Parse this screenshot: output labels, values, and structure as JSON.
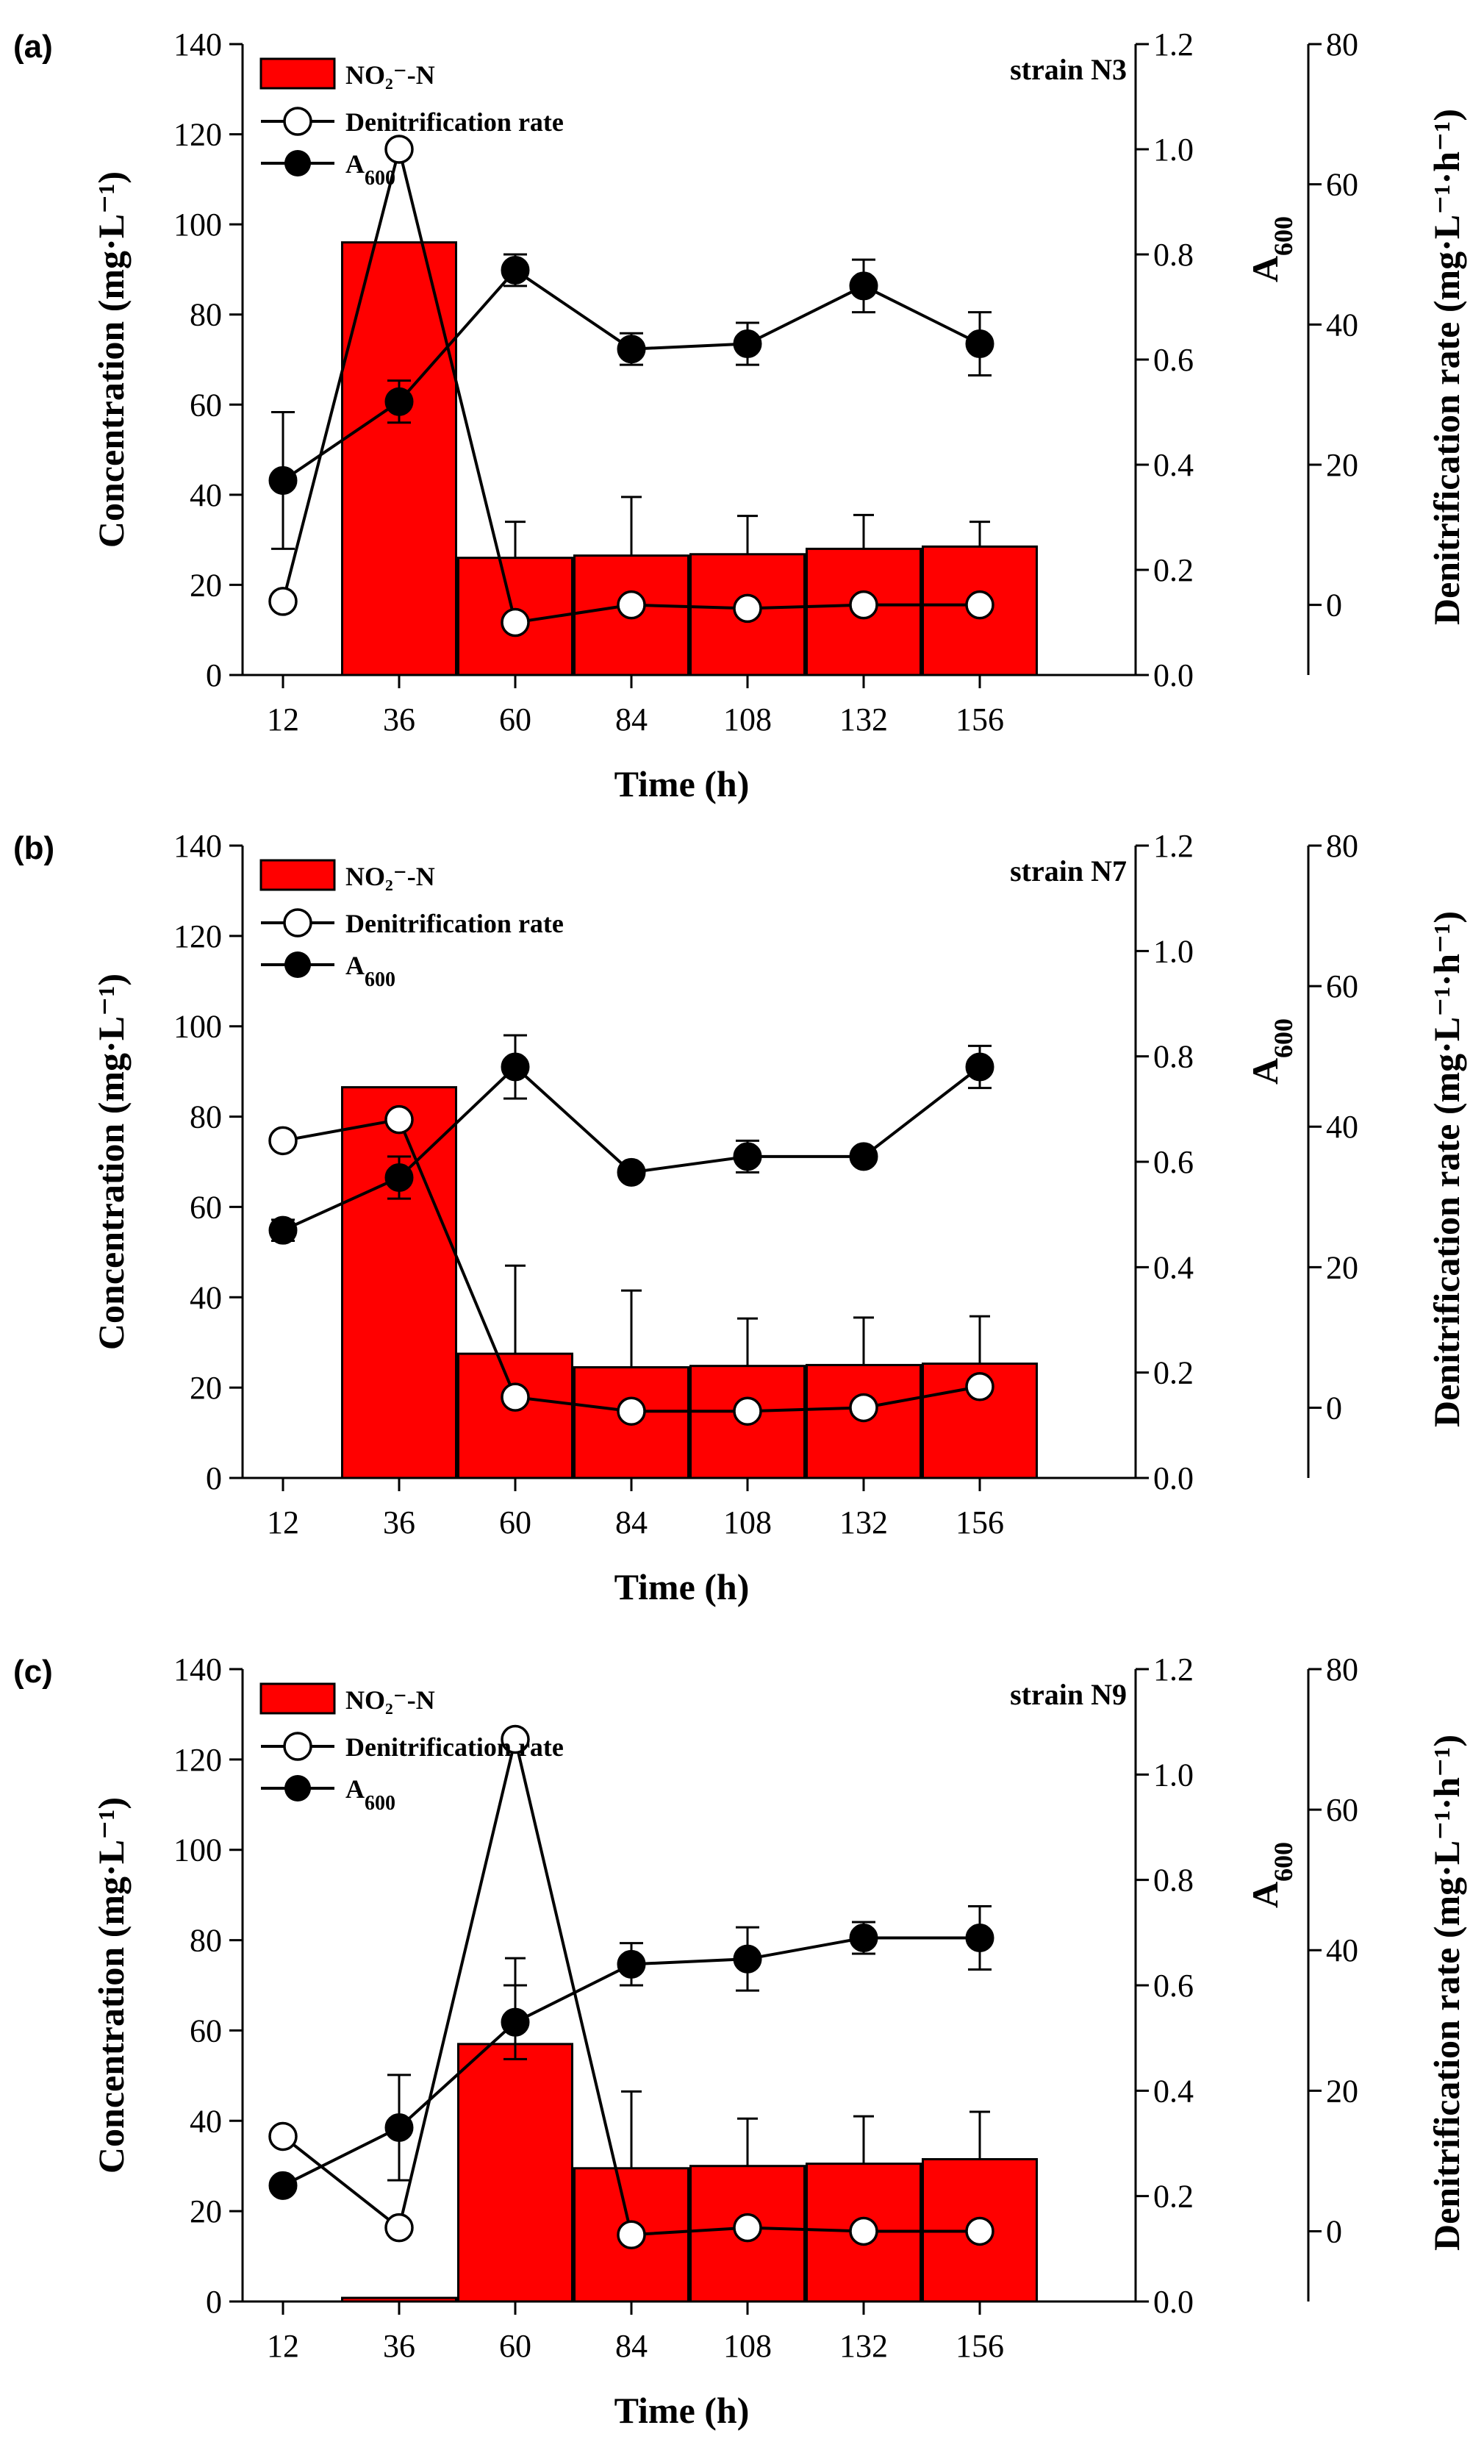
{
  "x_label": "Time (h)",
  "left_label": "Concentration (mg·L⁻¹)",
  "right1_label": "A600",
  "right2_label": "Denitrification rate (mg·L⁻¹·h⁻¹)",
  "legend": {
    "nitrite": "NO₂⁻-N",
    "rate": "Denitrification rate",
    "a600": "A600"
  },
  "colors": {
    "bar_fill": "#ff0000",
    "line": "#000000"
  },
  "chart_data": [
    {
      "type": "bar",
      "panel_label": "(a)",
      "strain": "strain N3",
      "categories": [
        "12",
        "36",
        "60",
        "84",
        "108",
        "132",
        "156"
      ],
      "ylim_left": [
        0,
        140
      ],
      "yticks_left": [
        "0",
        "20",
        "40",
        "60",
        "80",
        "100",
        "120",
        "140"
      ],
      "ylim_a600": [
        0,
        1.2
      ],
      "yticks_a600": [
        "0.0",
        "0.2",
        "0.4",
        "0.6",
        "0.8",
        "1.0",
        "1.2"
      ],
      "ylim_rate": [
        -10,
        80
      ],
      "yticks_rate": [
        "0",
        "20",
        "40",
        "60",
        "80"
      ],
      "series": [
        {
          "name": "NO₂⁻-N",
          "axis": "left",
          "values": [
            0,
            96,
            26,
            26.5,
            26.8,
            28,
            28.5
          ],
          "errors": [
            0,
            0,
            8,
            13,
            8.5,
            7.5,
            5.5
          ]
        },
        {
          "name": "Denitrification rate",
          "axis": "rate",
          "values": [
            0.5,
            65,
            -2.5,
            0,
            -0.5,
            0,
            0
          ]
        },
        {
          "name": "A600",
          "axis": "a600",
          "values": [
            0.37,
            0.52,
            0.77,
            0.62,
            0.63,
            0.74,
            0.63
          ],
          "errors": [
            0.13,
            0.04,
            0.03,
            0.03,
            0.04,
            0.05,
            0.06
          ]
        }
      ]
    },
    {
      "type": "bar",
      "panel_label": "(b)",
      "strain": "strain N7",
      "categories": [
        "12",
        "36",
        "60",
        "84",
        "108",
        "132",
        "156"
      ],
      "ylim_left": [
        0,
        140
      ],
      "yticks_left": [
        "0",
        "20",
        "40",
        "60",
        "80",
        "100",
        "120",
        "140"
      ],
      "ylim_a600": [
        0,
        1.2
      ],
      "yticks_a600": [
        "0.0",
        "0.2",
        "0.4",
        "0.6",
        "0.8",
        "1.0",
        "1.2"
      ],
      "ylim_rate": [
        -10,
        80
      ],
      "yticks_rate": [
        "0",
        "20",
        "40",
        "60",
        "80"
      ],
      "series": [
        {
          "name": "NO₂⁻-N",
          "axis": "left",
          "values": [
            0,
            86.5,
            27.5,
            24.5,
            24.8,
            25,
            25.3
          ],
          "errors": [
            0,
            0,
            19.5,
            17,
            10.5,
            10.5,
            10.5
          ]
        },
        {
          "name": "Denitrification rate",
          "axis": "rate",
          "values": [
            38,
            41,
            1.5,
            -0.5,
            -0.5,
            0,
            3
          ]
        },
        {
          "name": "A600",
          "axis": "a600",
          "values": [
            0.47,
            0.57,
            0.78,
            0.58,
            0.61,
            0.61,
            0.78
          ],
          "errors": [
            0.02,
            0.04,
            0.06,
            0.01,
            0.03,
            0.01,
            0.04
          ]
        }
      ]
    },
    {
      "type": "bar",
      "panel_label": "(c)",
      "strain": "strain N9",
      "categories": [
        "12",
        "36",
        "60",
        "84",
        "108",
        "132",
        "156"
      ],
      "ylim_left": [
        0,
        140
      ],
      "yticks_left": [
        "0",
        "20",
        "40",
        "60",
        "80",
        "100",
        "120",
        "140"
      ],
      "ylim_a600": [
        0,
        1.2
      ],
      "yticks_a600": [
        "0.0",
        "0.2",
        "0.4",
        "0.6",
        "0.8",
        "1.0",
        "1.2"
      ],
      "ylim_rate": [
        -10,
        80
      ],
      "yticks_rate": [
        "0",
        "20",
        "40",
        "60",
        "80"
      ],
      "series": [
        {
          "name": "NO₂⁻-N",
          "axis": "left",
          "values": [
            0,
            0.8,
            57,
            29.5,
            30,
            30.5,
            31.5
          ],
          "errors": [
            0,
            0,
            19,
            17,
            10.5,
            10.5,
            10.5
          ]
        },
        {
          "name": "Denitrification rate",
          "axis": "rate",
          "values": [
            13.5,
            0.5,
            70,
            -0.5,
            0.5,
            0,
            0
          ]
        },
        {
          "name": "A600",
          "axis": "a600",
          "values": [
            0.22,
            0.33,
            0.53,
            0.64,
            0.65,
            0.69,
            0.69
          ],
          "errors": [
            0.01,
            0.1,
            0.07,
            0.04,
            0.06,
            0.03,
            0.06
          ]
        }
      ]
    }
  ]
}
